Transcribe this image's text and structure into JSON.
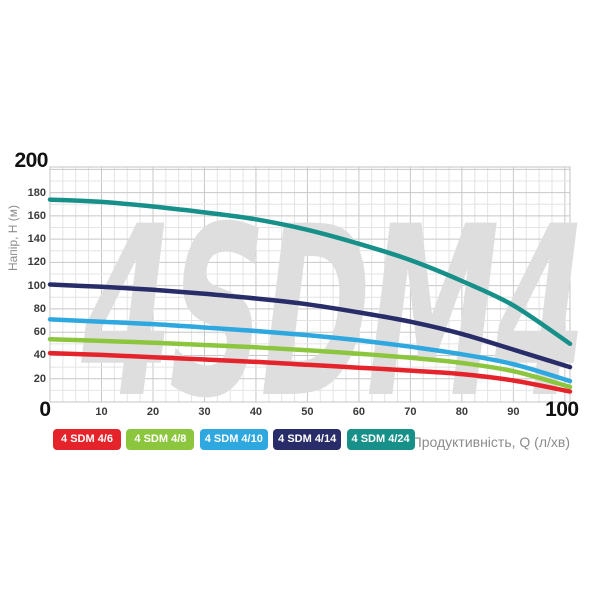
{
  "chart_data": {
    "type": "line",
    "title": "",
    "watermark": "4SDM4",
    "xlabel": "Продуктивність, Q (л/хв)",
    "ylabel": "Напір, H (м)",
    "xlim": [
      0,
      101
    ],
    "ylim": [
      0,
      202
    ],
    "grid": true,
    "x_minor_step": 2.5,
    "y_minor_step": 10,
    "x_major_step": 10,
    "y_major_step": 20,
    "x_ticks": [
      0,
      10,
      20,
      30,
      40,
      50,
      60,
      70,
      80,
      90,
      100
    ],
    "y_ticks": [
      20,
      40,
      60,
      80,
      100,
      120,
      140,
      160,
      180,
      200
    ],
    "x_ticks_emphasized": [
      0,
      100
    ],
    "y_ticks_emphasized": [
      200
    ],
    "legend_position": "bottom",
    "series": [
      {
        "name": "4 SDM 4/6",
        "color": "#e5232b",
        "points": [
          [
            0,
            42
          ],
          [
            10,
            40.5
          ],
          [
            20,
            38.5
          ],
          [
            30,
            36.5
          ],
          [
            40,
            34.5
          ],
          [
            50,
            32
          ],
          [
            60,
            29.5
          ],
          [
            70,
            27
          ],
          [
            80,
            24
          ],
          [
            90,
            18.5
          ],
          [
            101,
            9
          ]
        ]
      },
      {
        "name": "4 SDM 4/8",
        "color": "#8cc63e",
        "points": [
          [
            0,
            54
          ],
          [
            10,
            52.5
          ],
          [
            20,
            51
          ],
          [
            30,
            49
          ],
          [
            40,
            47
          ],
          [
            50,
            44.5
          ],
          [
            60,
            41.5
          ],
          [
            70,
            38
          ],
          [
            80,
            33.5
          ],
          [
            90,
            26.5
          ],
          [
            101,
            13
          ]
        ]
      },
      {
        "name": "4 SDM 4/10",
        "color": "#2fa8e0",
        "points": [
          [
            0,
            71
          ],
          [
            10,
            69
          ],
          [
            20,
            67
          ],
          [
            30,
            64
          ],
          [
            40,
            61
          ],
          [
            50,
            57.5
          ],
          [
            60,
            53
          ],
          [
            70,
            47.5
          ],
          [
            80,
            41
          ],
          [
            90,
            32.5
          ],
          [
            101,
            18
          ]
        ]
      },
      {
        "name": "4 SDM 4/14",
        "color": "#282c68",
        "points": [
          [
            0,
            101
          ],
          [
            10,
            99
          ],
          [
            20,
            96.5
          ],
          [
            30,
            93
          ],
          [
            40,
            89
          ],
          [
            50,
            84
          ],
          [
            60,
            77
          ],
          [
            70,
            69
          ],
          [
            80,
            58.5
          ],
          [
            90,
            45
          ],
          [
            101,
            30
          ]
        ]
      },
      {
        "name": "4 SDM 4/24",
        "color": "#17908a",
        "points": [
          [
            0,
            174
          ],
          [
            10,
            172
          ],
          [
            20,
            168
          ],
          [
            30,
            163
          ],
          [
            40,
            157
          ],
          [
            50,
            148
          ],
          [
            60,
            136
          ],
          [
            70,
            122
          ],
          [
            80,
            104
          ],
          [
            90,
            83
          ],
          [
            101,
            50
          ]
        ]
      }
    ],
    "colors": {
      "background": "#ffffff",
      "grid_minor": "#e4e4e4",
      "grid_major": "#c8c8c8",
      "grid_border": "#c4c4c4",
      "watermark": "#dedede",
      "tick_small": "#3a3a3a",
      "tick_big": "#111111",
      "axis_title": "#8c8c8c",
      "legend_text": "#ffffff"
    }
  }
}
